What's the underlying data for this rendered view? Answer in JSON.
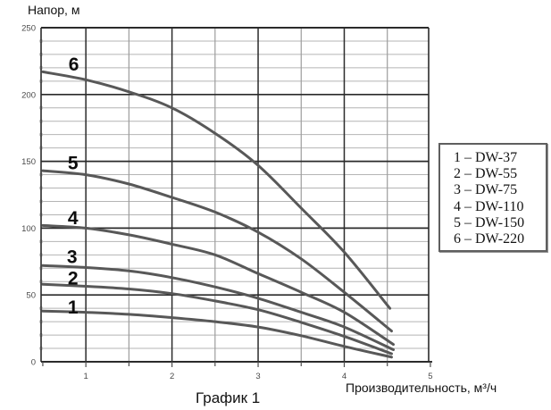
{
  "chart": {
    "y_axis_title": "Напор, м",
    "x_axis_title": "Производительность, м³/ч",
    "caption": "График 1"
  },
  "legend": {
    "entries": [
      "1 – DW-37",
      "2 – DW-55",
      "3 – DW-75",
      "4 – DW-110",
      "5 – DW-150",
      "6 – DW-220"
    ]
  },
  "colors": {
    "curve": "#585858",
    "grid_major": "#2b2b2b",
    "grid_minor": "#b4b4b4",
    "tick_label": "#4a4a4a",
    "curve_label": "#0d0d0d"
  },
  "chart_data": {
    "type": "line",
    "title": "График 1",
    "xlabel": "Производительность, м³/ч",
    "ylabel": "Напор, м",
    "xlim": [
      0.5,
      5
    ],
    "ylim": [
      0,
      250
    ],
    "x_ticks": [
      1,
      2,
      3,
      4,
      5
    ],
    "y_ticks": [
      0,
      50,
      100,
      150,
      200,
      250
    ],
    "x_minor_step": 0.5,
    "y_minor_step": 10,
    "grid": "major+minor",
    "legend_position": "right-outside",
    "series": [
      {
        "label": "1",
        "name": "DW-37",
        "label_at": [
          0.85,
          41
        ],
        "points": [
          [
            0.5,
            38
          ],
          [
            1,
            37
          ],
          [
            1.5,
            35.5
          ],
          [
            2,
            33
          ],
          [
            2.5,
            30
          ],
          [
            3,
            26
          ],
          [
            3.5,
            19.5
          ],
          [
            4,
            11.5
          ],
          [
            4.55,
            3.5
          ]
        ]
      },
      {
        "label": "2",
        "name": "DW-55",
        "label_at": [
          0.85,
          63
        ],
        "points": [
          [
            0.5,
            58
          ],
          [
            1,
            56.5
          ],
          [
            1.5,
            54.5
          ],
          [
            2,
            51
          ],
          [
            2.5,
            45.5
          ],
          [
            3,
            39
          ],
          [
            3.5,
            29.5
          ],
          [
            4,
            19
          ],
          [
            4.55,
            6
          ]
        ]
      },
      {
        "label": "3",
        "name": "DW-75",
        "label_at": [
          0.84,
          79
        ],
        "points": [
          [
            0.5,
            72
          ],
          [
            1,
            70.5
          ],
          [
            1.5,
            68
          ],
          [
            2,
            63
          ],
          [
            2.5,
            56
          ],
          [
            3,
            47.5
          ],
          [
            3.5,
            37
          ],
          [
            4,
            26
          ],
          [
            4.57,
            9
          ]
        ]
      },
      {
        "label": "4",
        "name": "DW-110",
        "label_at": [
          0.85,
          108
        ],
        "points": [
          [
            0.5,
            102
          ],
          [
            1,
            100
          ],
          [
            1.5,
            95
          ],
          [
            2,
            88
          ],
          [
            2.5,
            80
          ],
          [
            3,
            66
          ],
          [
            3.5,
            52
          ],
          [
            4,
            37
          ],
          [
            4.57,
            13
          ]
        ]
      },
      {
        "label": "5",
        "name": "DW-150",
        "label_at": [
          0.85,
          149
        ],
        "points": [
          [
            0.5,
            143
          ],
          [
            1,
            140
          ],
          [
            1.5,
            133
          ],
          [
            2,
            123
          ],
          [
            2.5,
            112
          ],
          [
            3,
            97
          ],
          [
            3.5,
            77
          ],
          [
            4,
            52
          ],
          [
            4.55,
            23
          ]
        ]
      },
      {
        "label": "6",
        "name": "DW-220",
        "label_at": [
          0.86,
          223
        ],
        "points": [
          [
            0.5,
            217
          ],
          [
            1,
            211
          ],
          [
            1.5,
            202
          ],
          [
            2,
            190
          ],
          [
            2.5,
            171
          ],
          [
            3,
            147
          ],
          [
            3.5,
            115
          ],
          [
            4,
            82
          ],
          [
            4.53,
            40
          ]
        ]
      }
    ]
  }
}
